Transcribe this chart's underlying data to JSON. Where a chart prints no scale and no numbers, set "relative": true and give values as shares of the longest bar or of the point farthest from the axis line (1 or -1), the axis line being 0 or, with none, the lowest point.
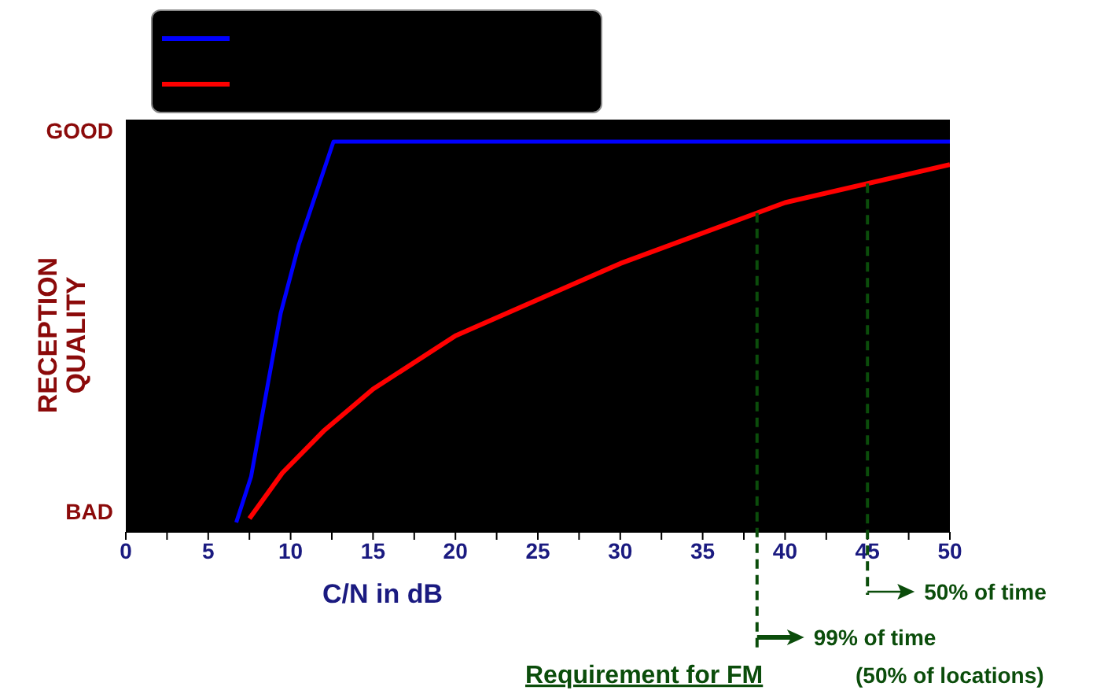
{
  "chart_data": {
    "type": "line",
    "relative": true,
    "xlabel": "C/N in dB",
    "ylabel": "RECEPTION QUALITY",
    "xlim": [
      0,
      50
    ],
    "xticks": [
      0,
      {
        "value": 2.5,
        "label": null
      },
      5,
      {
        "value": 7.5,
        "label": null
      },
      10,
      {
        "value": 12.5,
        "label": null
      },
      15,
      {
        "value": 17.5,
        "label": null
      },
      20,
      {
        "value": 22.5,
        "label": null
      },
      25,
      {
        "value": 27.5,
        "label": null
      },
      30,
      {
        "value": 32.5,
        "label": null
      },
      35,
      {
        "value": 37.5,
        "label": null
      },
      40,
      {
        "value": 42.5,
        "label": null
      },
      45,
      {
        "value": 47.5,
        "label": null
      },
      50
    ],
    "series": [
      {
        "color": "#0000ff",
        "x": [
          6.7,
          7.6,
          9.4,
          10.5,
          12.6,
          50
        ],
        "values": [
          0,
          0.12,
          0.55,
          0.73,
          1,
          1
        ]
      },
      {
        "color": "#ff0000",
        "x": [
          7.5,
          9.5,
          12,
          15,
          20,
          30,
          40,
          50
        ],
        "values": [
          0.01,
          0.13,
          0.24,
          0.35,
          0.49,
          0.68,
          0.84,
          0.94
        ]
      }
    ],
    "ref_lines": [
      {
        "axis": "x",
        "value": 38.3,
        "label": "99% of time",
        "color": "#0b4d0b",
        "line_style": "dashed"
      },
      {
        "axis": "x",
        "value": 45,
        "label": "50% of time",
        "color": "#0b4d0b",
        "line_style": "dashed"
      }
    ],
    "annotations": [
      "GOOD",
      "BAD",
      "Requirement for FM",
      "(50% of locations)"
    ],
    "marker": "none",
    "line_style": "solid"
  }
}
